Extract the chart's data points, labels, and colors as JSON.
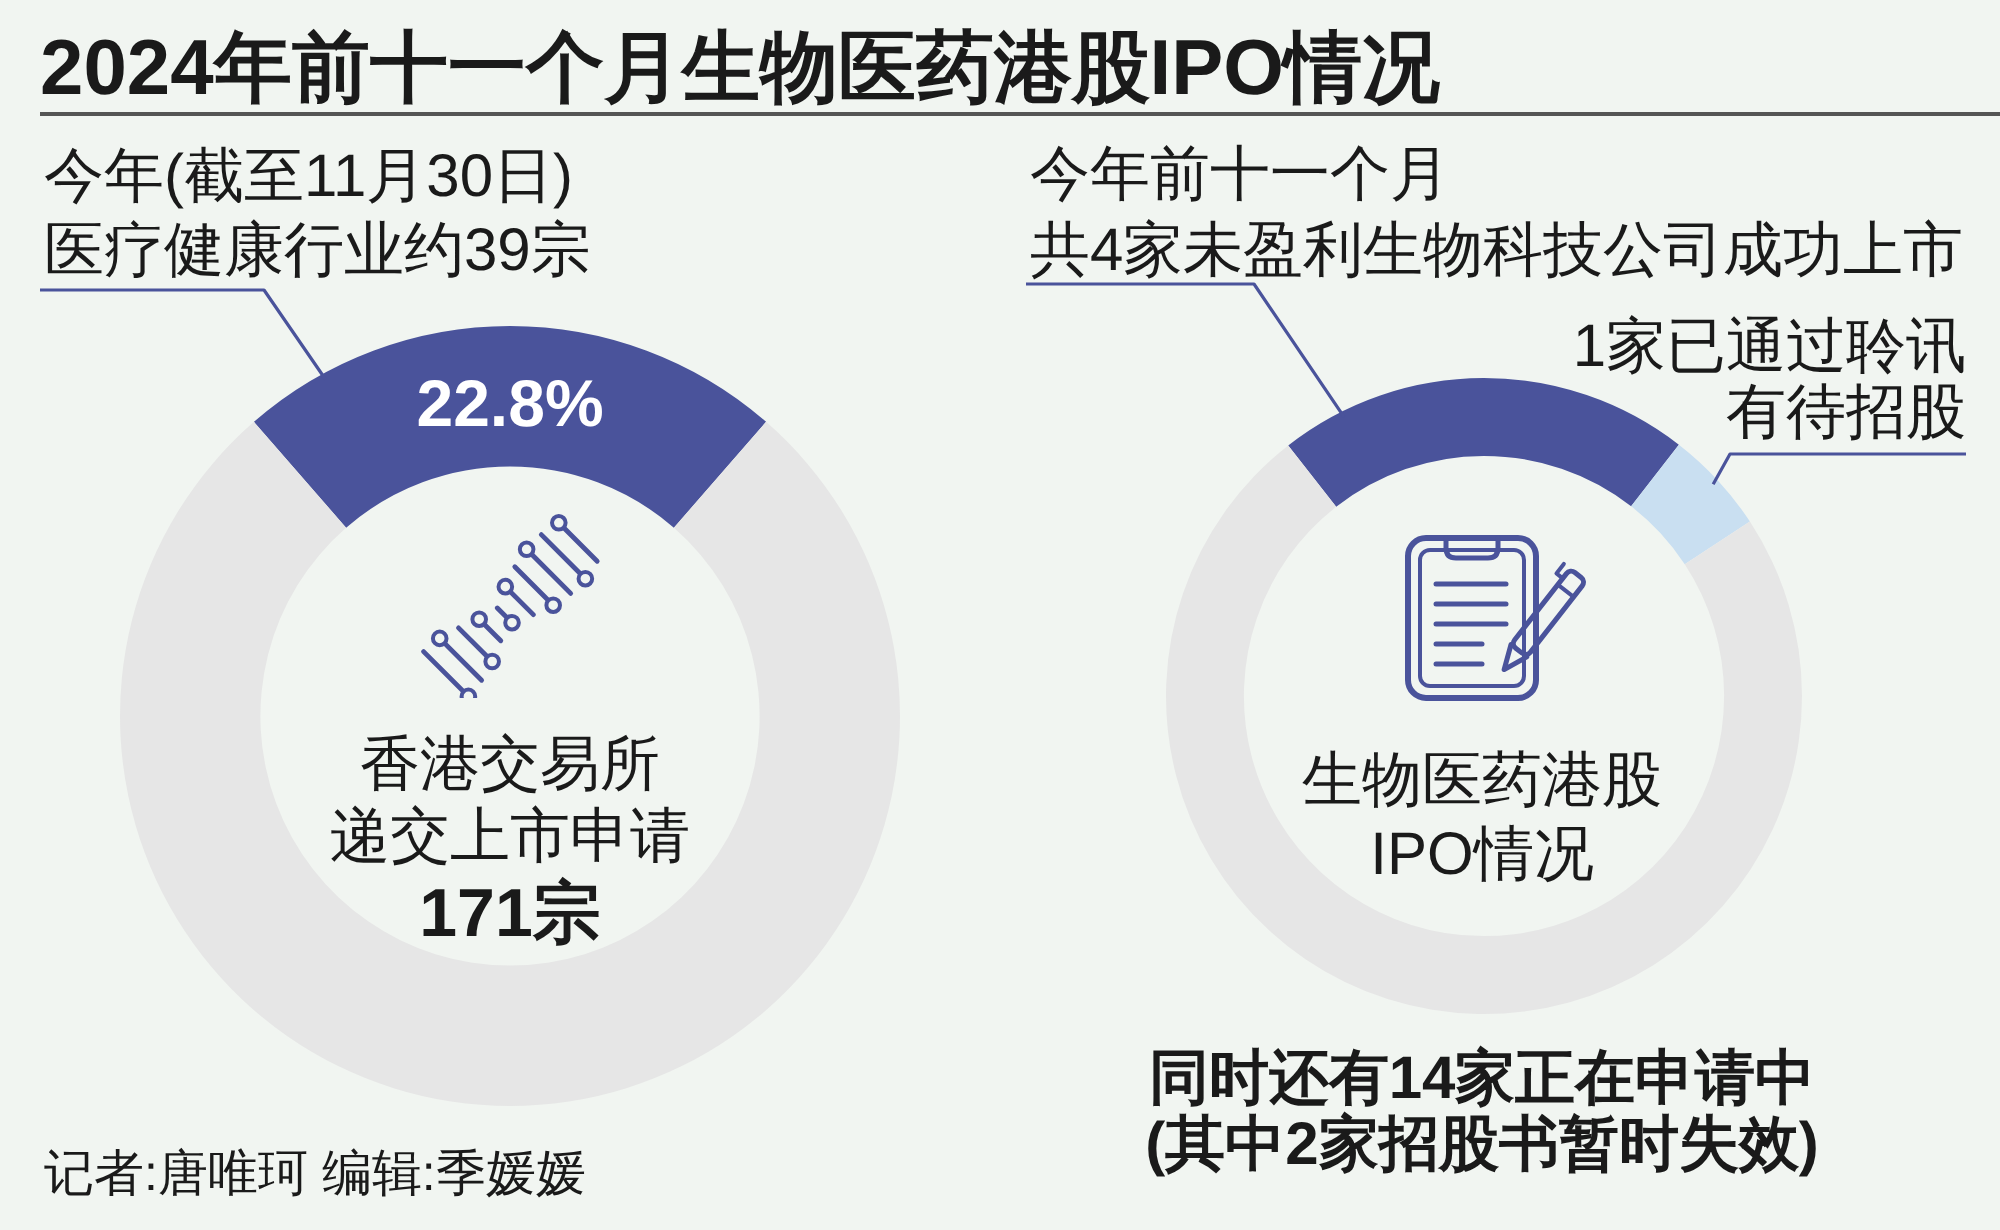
{
  "chart_data": [
    {
      "type": "donut",
      "title": "2024年前十一个月生物医药港股IPO情况",
      "categories": [
        "今年(截至11月30日)医疗健康行业约39宗",
        null
      ],
      "values": [
        22.8,
        77.2
      ],
      "colors": [
        "#4a539b",
        "#e6e6e6"
      ],
      "value_labels": [
        "22.8%",
        null
      ],
      "annotations": [
        "香港交易所递交上市申请171宗",
        "记者:唐唯珂 编辑:季媛媛"
      ]
    },
    {
      "type": "donut",
      "categories": [
        "今年前十一个月共4家未盈利生物科技公司成功上市",
        "1家已通过聆讯有待招股",
        "同时还有14家正在申请中(其中2家招股书暂时失效)"
      ],
      "values": [
        4,
        1,
        14
      ],
      "colors": [
        "#4a539b",
        "#c9dff1",
        "#e6e6e6"
      ],
      "annotations": [
        "生物医药港股IPO情况"
      ]
    }
  ]
}
